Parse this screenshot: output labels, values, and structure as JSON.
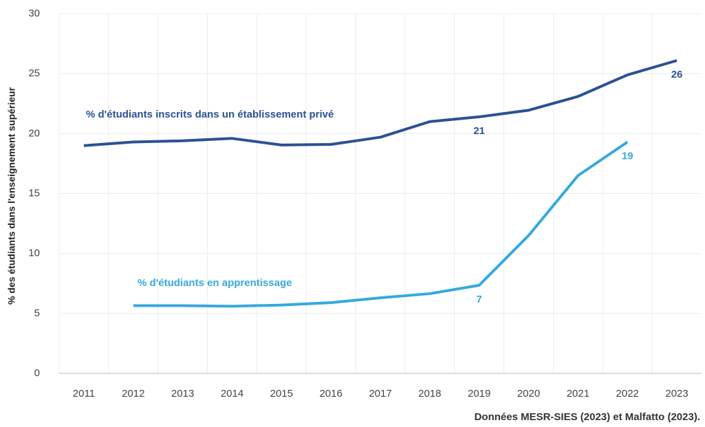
{
  "chart_data": {
    "type": "line",
    "y_label": "% des étudiants dans l'enseignement supérieur",
    "source": "Données MESR-SIES (2023) et Malfatto (2023).",
    "x": [
      2011,
      2012,
      2013,
      2014,
      2015,
      2016,
      2017,
      2018,
      2019,
      2020,
      2021,
      2022,
      2023
    ],
    "xlim": [
      2010.5,
      2023.5
    ],
    "xticks": [
      2011,
      2012,
      2013,
      2014,
      2015,
      2016,
      2017,
      2018,
      2019,
      2020,
      2021,
      2022,
      2023
    ],
    "ylim": [
      0,
      30
    ],
    "yticks": [
      0,
      5,
      10,
      15,
      20,
      25,
      30
    ],
    "grid": true,
    "series": [
      {
        "name": "% d'étudiants inscrits dans un établissement privé",
        "color": "#2a5195",
        "values": [
          19.0,
          19.3,
          19.4,
          19.6,
          19.05,
          19.1,
          19.7,
          21.0,
          21.4,
          21.95,
          23.1,
          24.9,
          26.1
        ],
        "value_labels": [
          null,
          null,
          null,
          null,
          null,
          null,
          null,
          null,
          "21",
          null,
          null,
          null,
          "26"
        ]
      },
      {
        "name": "% d'étudiants en apprentissage",
        "color": "#36a9dc",
        "values": [
          null,
          5.65,
          5.65,
          5.6,
          5.7,
          5.9,
          6.3,
          6.65,
          7.35,
          11.5,
          16.5,
          19.3,
          null
        ],
        "value_labels": [
          null,
          null,
          null,
          null,
          null,
          null,
          null,
          null,
          "7",
          null,
          null,
          "19",
          null
        ]
      }
    ]
  }
}
